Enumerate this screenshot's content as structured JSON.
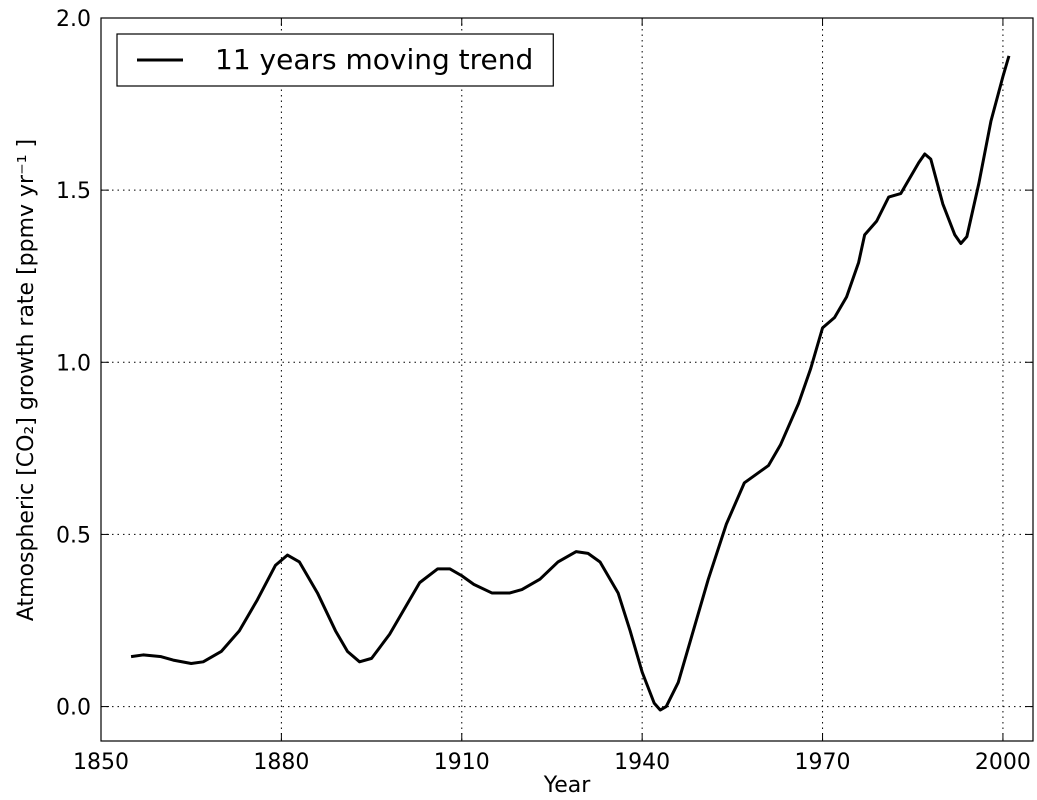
{
  "chart_data": {
    "type": "line",
    "xlabel": "Year",
    "ylabel": "Atmospheric [CO₂] growth rate [ppmv yr⁻¹ ]",
    "xlim": [
      1850,
      2005
    ],
    "ylim": [
      -0.1,
      2.0
    ],
    "xticks": [
      1850,
      1880,
      1910,
      1940,
      1970,
      2000
    ],
    "yticks": [
      {
        "value": 0,
        "label": "0.0"
      },
      0.5,
      {
        "value": 1,
        "label": "1.0"
      },
      1.5,
      {
        "value": 2,
        "label": "2.0"
      }
    ],
    "grid": true,
    "legend": "upper left",
    "x": [
      1855,
      1857,
      1860,
      1862,
      1865,
      1867,
      1870,
      1873,
      1876,
      1879,
      1881,
      1883,
      1886,
      1889,
      1891,
      1893,
      1895,
      1898,
      1901,
      1903,
      1906,
      1908,
      1910,
      1912,
      1915,
      1918,
      1920,
      1923,
      1926,
      1929,
      1931,
      1933,
      1936,
      1938,
      1940,
      1942,
      1943,
      1944,
      1946,
      1948,
      1951,
      1954,
      1957,
      1959,
      1961,
      1963,
      1966,
      1968,
      1970,
      1972,
      1974,
      1976,
      1977,
      1979,
      1981,
      1983,
      1986,
      1987,
      1988,
      1990,
      1992,
      1993,
      1994,
      1996,
      1998,
      2000,
      2001
    ],
    "series": [
      {
        "name": "11 years moving trend",
        "color": "#000000",
        "values": [
          0.145,
          0.15,
          0.145,
          0.135,
          0.125,
          0.13,
          0.16,
          0.22,
          0.31,
          0.41,
          0.44,
          0.42,
          0.33,
          0.22,
          0.16,
          0.13,
          0.14,
          0.21,
          0.3,
          0.36,
          0.4,
          0.4,
          0.38,
          0.355,
          0.33,
          0.33,
          0.34,
          0.37,
          0.42,
          0.45,
          0.445,
          0.42,
          0.33,
          0.22,
          0.1,
          0.01,
          -0.01,
          0.0,
          0.07,
          0.19,
          0.37,
          0.53,
          0.65,
          0.675,
          0.7,
          0.76,
          0.88,
          0.98,
          1.1,
          1.13,
          1.19,
          1.29,
          1.37,
          1.41,
          1.48,
          1.49,
          1.58,
          1.605,
          1.59,
          1.46,
          1.37,
          1.345,
          1.365,
          1.52,
          1.7,
          1.83,
          1.89
        ]
      }
    ]
  }
}
